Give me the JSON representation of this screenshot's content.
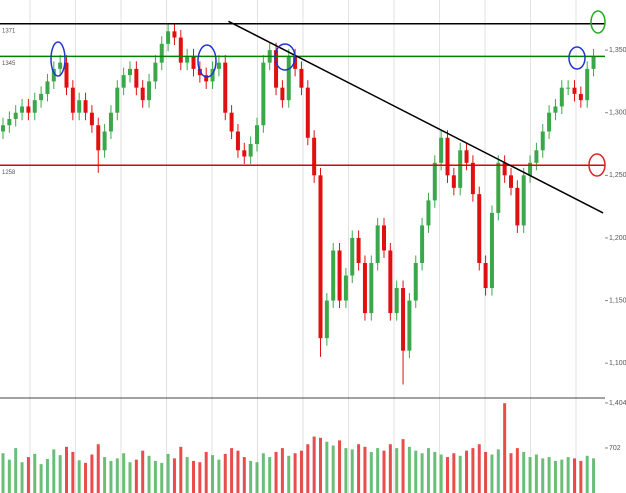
{
  "chart_data": {
    "type": "ohlc",
    "open": [
      1285,
      1290,
      1295,
      1300,
      1305,
      1300,
      1310,
      1315,
      1325,
      1335,
      1340,
      1320,
      1300,
      1310,
      1300,
      1290,
      1270,
      1285,
      1300,
      1320,
      1330,
      1335,
      1320,
      1310,
      1325,
      1340,
      1355,
      1365,
      1360,
      1340,
      1345,
      1335,
      1330,
      1325,
      1335,
      1340,
      1300,
      1285,
      1270,
      1265,
      1275,
      1290,
      1340,
      1350,
      1320,
      1310,
      1345,
      1335,
      1320,
      1280,
      1250,
      1120,
      1150,
      1190,
      1150,
      1170,
      1200,
      1180,
      1140,
      1180,
      1210,
      1190,
      1140,
      1160,
      1110,
      1150,
      1180,
      1210,
      1230,
      1260,
      1280,
      1250,
      1240,
      1270,
      1260,
      1235,
      1180,
      1160,
      1220,
      1260,
      1250,
      1240,
      1210,
      1250,
      1260,
      1270,
      1285,
      1300,
      1305,
      1320,
      1320,
      1315,
      1310,
      1335
    ],
    "high": [
      1296,
      1301,
      1306,
      1311,
      1311,
      1316,
      1321,
      1331,
      1341,
      1346,
      1346,
      1326,
      1316,
      1316,
      1306,
      1296,
      1291,
      1306,
      1326,
      1336,
      1341,
      1341,
      1326,
      1331,
      1346,
      1361,
      1371,
      1371,
      1366,
      1351,
      1351,
      1341,
      1336,
      1341,
      1346,
      1346,
      1306,
      1291,
      1276,
      1281,
      1296,
      1346,
      1356,
      1356,
      1326,
      1351,
      1351,
      1341,
      1326,
      1286,
      1256,
      1156,
      1196,
      1196,
      1176,
      1206,
      1206,
      1186,
      1186,
      1216,
      1216,
      1196,
      1166,
      1166,
      1156,
      1186,
      1216,
      1236,
      1266,
      1286,
      1286,
      1256,
      1276,
      1276,
      1266,
      1241,
      1186,
      1226,
      1266,
      1266,
      1256,
      1246,
      1256,
      1266,
      1276,
      1291,
      1306,
      1311,
      1326,
      1326,
      1326,
      1321,
      1341,
      1351
    ],
    "low": [
      1279,
      1284,
      1289,
      1294,
      1294,
      1294,
      1304,
      1309,
      1319,
      1329,
      1314,
      1294,
      1294,
      1294,
      1284,
      1252,
      1264,
      1279,
      1294,
      1314,
      1324,
      1314,
      1304,
      1304,
      1319,
      1334,
      1349,
      1354,
      1334,
      1334,
      1329,
      1324,
      1319,
      1319,
      1329,
      1294,
      1279,
      1264,
      1259,
      1259,
      1269,
      1284,
      1334,
      1314,
      1304,
      1304,
      1329,
      1314,
      1274,
      1244,
      1105,
      1114,
      1144,
      1144,
      1144,
      1164,
      1174,
      1134,
      1134,
      1174,
      1184,
      1134,
      1134,
      1083,
      1104,
      1144,
      1174,
      1204,
      1224,
      1254,
      1244,
      1234,
      1234,
      1254,
      1229,
      1174,
      1154,
      1154,
      1214,
      1244,
      1234,
      1204,
      1204,
      1244,
      1254,
      1264,
      1279,
      1294,
      1299,
      1314,
      1309,
      1304,
      1304,
      1329
    ],
    "close": [
      1290,
      1295,
      1300,
      1305,
      1300,
      1310,
      1315,
      1325,
      1335,
      1340,
      1320,
      1300,
      1310,
      1300,
      1290,
      1270,
      1285,
      1300,
      1320,
      1330,
      1335,
      1320,
      1310,
      1325,
      1340,
      1355,
      1365,
      1360,
      1340,
      1345,
      1335,
      1330,
      1325,
      1335,
      1340,
      1300,
      1285,
      1270,
      1265,
      1275,
      1290,
      1340,
      1350,
      1320,
      1310,
      1345,
      1335,
      1320,
      1280,
      1250,
      1120,
      1150,
      1190,
      1150,
      1170,
      1200,
      1180,
      1140,
      1180,
      1210,
      1190,
      1140,
      1160,
      1110,
      1150,
      1180,
      1210,
      1230,
      1260,
      1280,
      1250,
      1240,
      1270,
      1260,
      1235,
      1180,
      1160,
      1220,
      1260,
      1250,
      1240,
      1210,
      1250,
      1260,
      1270,
      1285,
      1300,
      1305,
      1320,
      1320,
      1315,
      1310,
      1335,
      1345
    ],
    "volume": [
      620,
      520,
      700,
      480,
      560,
      610,
      450,
      530,
      680,
      590,
      720,
      640,
      510,
      470,
      600,
      760,
      560,
      500,
      540,
      620,
      480,
      520,
      660,
      580,
      500,
      470,
      610,
      540,
      720,
      560,
      500,
      480,
      640,
      590,
      520,
      610,
      700,
      660,
      560,
      500,
      480,
      620,
      560,
      640,
      700,
      580,
      620,
      660,
      760,
      880,
      860,
      800,
      740,
      820,
      700,
      680,
      760,
      720,
      640,
      700,
      660,
      760,
      700,
      840,
      720,
      660,
      620,
      700,
      640,
      600,
      560,
      620,
      580,
      660,
      700,
      760,
      640,
      600,
      680,
      1400,
      620,
      700,
      640,
      560,
      600,
      540,
      560,
      500,
      520,
      560,
      540,
      500,
      580,
      540
    ],
    "up_color": "#3aa84a",
    "down_color": "#e01010",
    "ylim": [
      1073,
      1390
    ],
    "yticks": [
      {
        "value": 1100,
        "label": "1,100"
      },
      {
        "value": 1150,
        "label": "1,150"
      },
      {
        "value": 1200,
        "label": "1,200"
      },
      {
        "value": 1250,
        "label": "1,250"
      },
      {
        "value": 1300,
        "label": "1,300"
      },
      {
        "value": 1350,
        "label": "1,350"
      }
    ],
    "volume_ylim": [
      0,
      1450
    ],
    "volume_yticks": [
      702,
      {
        "value": 1404,
        "label": "1,404"
      }
    ],
    "hlines": [
      {
        "value": 1371,
        "color": "#000000"
      },
      {
        "value": 1345,
        "color": "#008000"
      },
      {
        "value": 1258,
        "color": "#e00000"
      }
    ],
    "trendline": {
      "x": [
        35.5,
        94.5
      ],
      "y": [
        1373,
        1220
      ],
      "color": "#000000"
    }
  }
}
